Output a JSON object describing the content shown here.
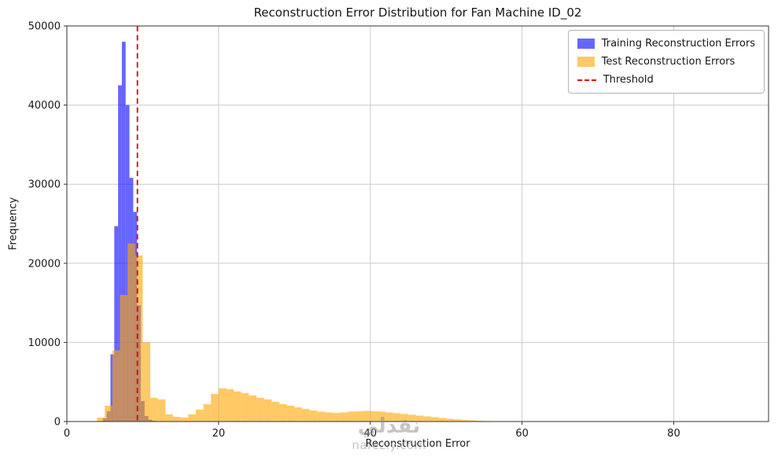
{
  "chart_data": {
    "type": "bar",
    "title": "Reconstruction Error Distribution for Fan Machine ID_02",
    "xlabel": "Reconstruction Error",
    "ylabel": "Frequency",
    "xlim": [
      0,
      92.5
    ],
    "ylim": [
      0,
      50000
    ],
    "grid": true,
    "grid_color": "#cccccc",
    "x_ticks": {
      "values": [
        0,
        20,
        40,
        60,
        80
      ],
      "labels": [
        "0",
        "20",
        "40",
        "60",
        "80"
      ]
    },
    "y_ticks": {
      "values": [
        0,
        10000,
        20000,
        30000,
        40000,
        50000
      ],
      "labels": [
        "0",
        "10000",
        "20000",
        "30000",
        "40000",
        "50000"
      ]
    },
    "threshold": {
      "value": 9.3,
      "color": "#dd0000",
      "style": "dashed",
      "label": "Threshold"
    },
    "series": [
      {
        "name": "Training Reconstruction Errors",
        "color": "#0000ff",
        "opacity": 0.6,
        "bin_start": 4.75,
        "bin_width": 0.5,
        "counts": [
          400,
          1300,
          8500,
          24700,
          42500,
          48000,
          40000,
          30800,
          26500,
          14700,
          2600,
          700,
          250,
          100
        ]
      },
      {
        "name": "Test Reconstruction Errors",
        "color": "#ffa500",
        "opacity": 0.6,
        "bin_start": 4,
        "bin_width": 1,
        "counts": [
          500,
          2000,
          9000,
          16000,
          22500,
          21000,
          10000,
          3000,
          2800,
          900,
          600,
          500,
          900,
          1500,
          2200,
          3500,
          4200,
          4100,
          3800,
          3600,
          3300,
          3000,
          2800,
          2500,
          2200,
          2000,
          1800,
          1600,
          1400,
          1250,
          1150,
          1100,
          1150,
          1250,
          1300,
          1350,
          1300,
          1250,
          1150,
          1050,
          950,
          850,
          750,
          650,
          550,
          450,
          350,
          280,
          200,
          150,
          100,
          70,
          40,
          20
        ]
      }
    ],
    "legend": {
      "position": "upper right",
      "items": [
        {
          "label": "Training Reconstruction Errors",
          "color": "#0000ff",
          "type": "patch"
        },
        {
          "label": "Test Reconstruction Errors",
          "color": "#ffa500",
          "type": "patch"
        },
        {
          "label": "Threshold",
          "color": "#dd0000",
          "type": "dashed-line"
        }
      ]
    }
  },
  "watermark": {
    "line1": "نفذلي",
    "line2": "nafezly.com"
  }
}
